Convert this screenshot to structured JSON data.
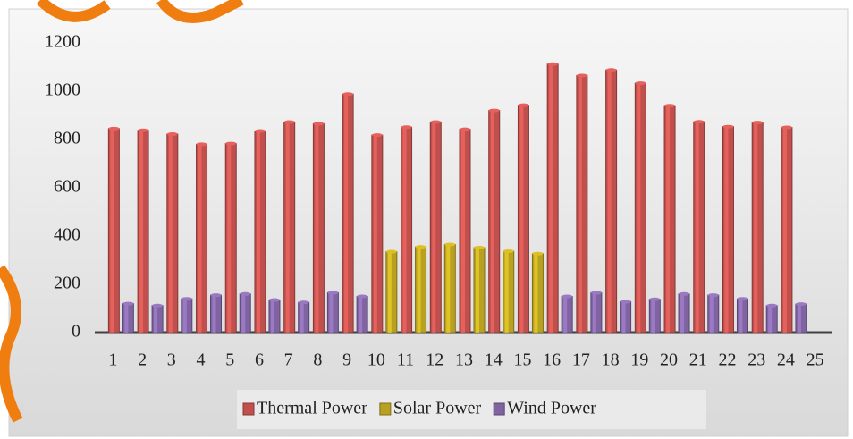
{
  "chart_data": {
    "type": "bar",
    "categories": [
      "1",
      "2",
      "3",
      "4",
      "5",
      "6",
      "7",
      "8",
      "9",
      "10",
      "11",
      "12",
      "13",
      "14",
      "15",
      "16",
      "17",
      "18",
      "19",
      "20",
      "21",
      "22",
      "23",
      "24",
      "25"
    ],
    "series": [
      {
        "name": "Thermal Power",
        "color": "#c0504d",
        "values": [
          845,
          838,
          822,
          780,
          783,
          835,
          872,
          865,
          988,
          818,
          851,
          872,
          842,
          920,
          942,
          1112,
          1065,
          1088,
          1033,
          940,
          873,
          853,
          870,
          850,
          null
        ]
      },
      {
        "name": "Solar Power",
        "color": "#b8a020",
        "values": [
          0,
          0,
          0,
          0,
          0,
          0,
          0,
          0,
          0,
          335,
          355,
          365,
          352,
          337,
          327,
          0,
          0,
          0,
          0,
          0,
          0,
          0,
          0,
          0,
          null
        ]
      },
      {
        "name": "Wind Power",
        "color": "#8064a2",
        "values": [
          120,
          112,
          140,
          155,
          160,
          135,
          125,
          165,
          150,
          0,
          0,
          0,
          0,
          0,
          0,
          150,
          165,
          128,
          138,
          160,
          155,
          140,
          112,
          118,
          null
        ]
      }
    ],
    "ylim": [
      0,
      1200
    ],
    "yticks": [
      0,
      200,
      400,
      600,
      800,
      1000,
      1200
    ],
    "grid": false,
    "legend": "bottom"
  }
}
